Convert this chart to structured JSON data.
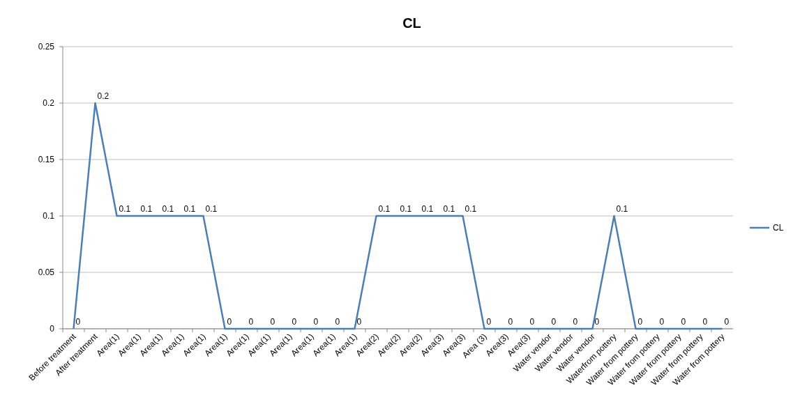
{
  "chart_data": {
    "type": "line",
    "title": "CL",
    "categories": [
      "Before treatment",
      "After treatment",
      "Area(1)",
      "Area(1)",
      "Area(1)",
      "Area(1)",
      "Area(1)",
      "Area(1)",
      "Area(1)",
      "Area(1)",
      "Area(1)",
      "Area(1)",
      "Area(1)",
      "Area(1)",
      "Area(2)",
      "Area(2)",
      "Area(2)",
      "Area(3)",
      "Area(3)",
      "Area (3)",
      "Area(3)",
      "Area(3)",
      "Water vendor",
      "Water vendor",
      "Water vendor",
      "Waterfrom pottery",
      "Water from pottery",
      "Water from pottery",
      "Water from pottery",
      "Water from pottery",
      "Water from pottery"
    ],
    "series": [
      {
        "name": "CL",
        "color": "#4a7ebb",
        "values": [
          0,
          0.2,
          0.1,
          0.1,
          0.1,
          0.1,
          0.1,
          0,
          0,
          0,
          0,
          0,
          0,
          0,
          0.1,
          0.1,
          0.1,
          0.1,
          0.1,
          0,
          0,
          0,
          0,
          0,
          0,
          0.1,
          0,
          0,
          0,
          0,
          0
        ]
      }
    ],
    "ylim": [
      0,
      0.25
    ],
    "yticks": [
      0,
      0.05,
      0.1,
      0.15,
      0.2,
      0.25
    ],
    "grid": "y",
    "legend": "right",
    "data_labels": true,
    "marker": "none",
    "line_style": "solid"
  }
}
